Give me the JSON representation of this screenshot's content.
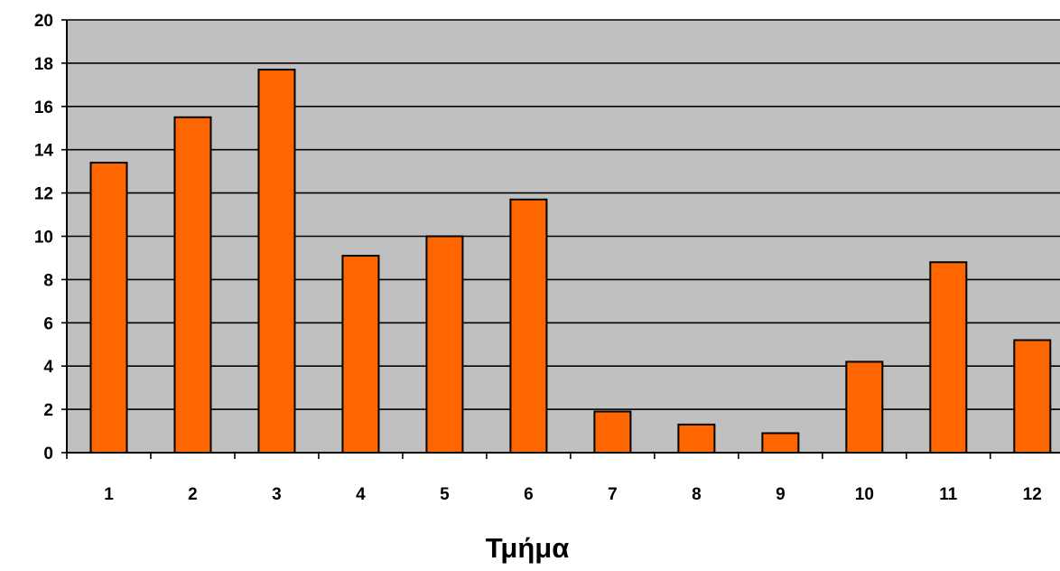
{
  "chart_data": {
    "type": "bar",
    "title": "",
    "xlabel": "Τμήμα",
    "ylabel": "",
    "categories": [
      "1",
      "2",
      "3",
      "4",
      "5",
      "6",
      "7",
      "8",
      "9",
      "10",
      "11",
      "12"
    ],
    "values": [
      13.4,
      15.5,
      17.7,
      9.1,
      10.0,
      11.7,
      1.9,
      1.3,
      0.9,
      4.2,
      8.8,
      5.2
    ],
    "ylim": [
      0,
      20
    ],
    "yticks": [
      "0",
      "2",
      "4",
      "6",
      "8",
      "10",
      "12",
      "14",
      "16",
      "18",
      "20"
    ],
    "grid": true,
    "legend": "none",
    "colors": {
      "bar_fill": "#FF6600",
      "bar_stroke": "#000000",
      "plot_background": "#C0C0C0",
      "gridline": "#000000"
    }
  }
}
